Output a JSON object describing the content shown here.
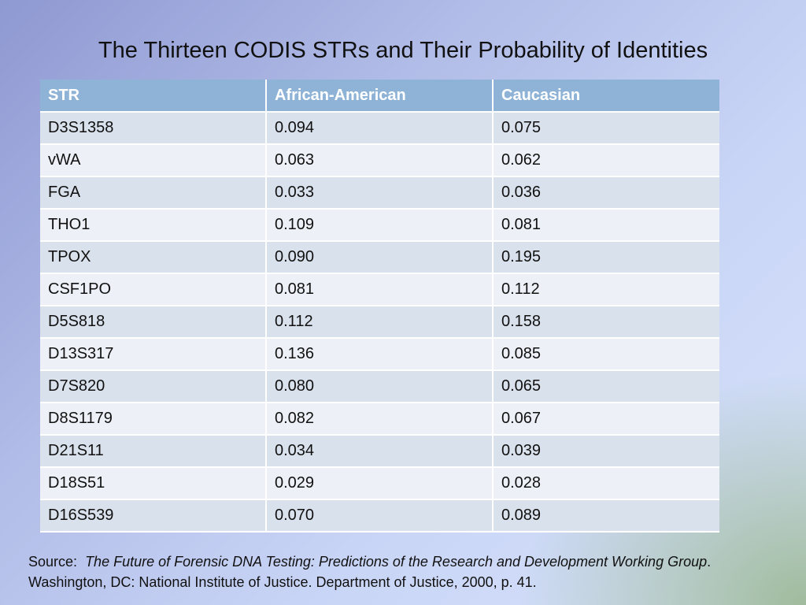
{
  "title": "The Thirteen CODIS STRs and Their Probability of Identities",
  "table": {
    "headers": [
      "STR",
      "African-American",
      "Caucasian"
    ],
    "rows": [
      [
        "D3S1358",
        "0.094",
        "0.075"
      ],
      [
        "vWA",
        "0.063",
        "0.062"
      ],
      [
        "FGA",
        "0.033",
        "0.036"
      ],
      [
        "THO1",
        "0.109",
        "0.081"
      ],
      [
        "TPOX",
        "0.090",
        "0.195"
      ],
      [
        "CSF1PO",
        "0.081",
        "0.112"
      ],
      [
        "D5S818",
        "0.112",
        "0.158"
      ],
      [
        "D13S317",
        "0.136",
        "0.085"
      ],
      [
        "D7S820",
        "0.080",
        "0.065"
      ],
      [
        "D8S1179",
        "0.082",
        "0.067"
      ],
      [
        "D21S11",
        "0.034",
        "0.039"
      ],
      [
        "D18S51",
        "0.029",
        "0.028"
      ],
      [
        "D16S539",
        "0.070",
        "0.089"
      ]
    ]
  },
  "source": {
    "prefix": "Source:",
    "work_title": "The Future of Forensic DNA Testing: Predictions of the Research and Development Working Group",
    "rest": ".  Washington, DC: National Institute of Justice.  Department of Justice, 2000, p. 41."
  },
  "colors": {
    "header_bg": "#8fb3d6",
    "row_odd_bg": "#d9e1ec",
    "row_even_bg": "#edf1f7"
  }
}
